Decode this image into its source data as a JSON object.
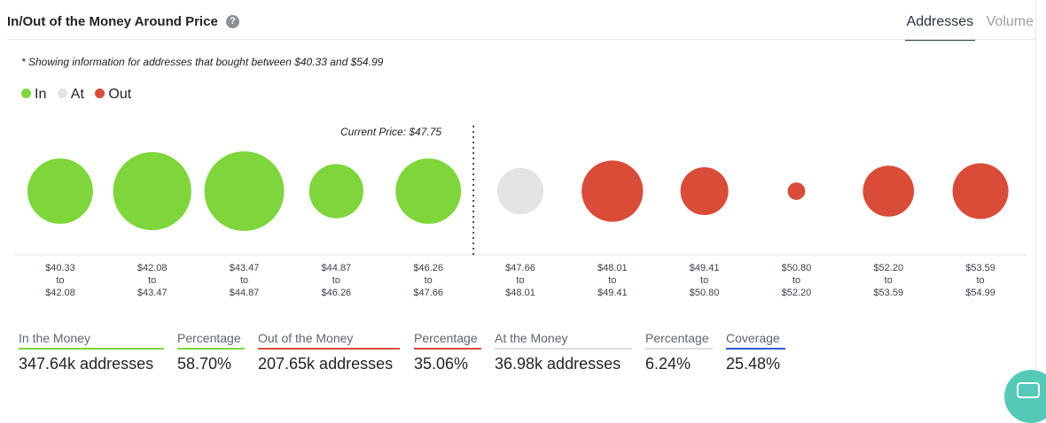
{
  "header": {
    "title": "In/Out of the Money Around Price",
    "help_icon": "?",
    "tabs": [
      {
        "label": "Addresses",
        "active": true
      },
      {
        "label": "Volume",
        "active": false
      }
    ]
  },
  "note": "* Showing information for addresses that bought between $40.33 and $54.99",
  "colors": {
    "in": "#7ed63b",
    "at": "#e3e3e3",
    "out": "#d84c38"
  },
  "chart_data": {
    "type": "bubble",
    "legend": [
      {
        "label": "In",
        "status": "in"
      },
      {
        "label": "At",
        "status": "at"
      },
      {
        "label": "Out",
        "status": "out"
      }
    ],
    "current_price_label": "Current Price: $47.75",
    "bins": [
      {
        "from": "$40.33",
        "to_word": "to",
        "to": "$42.08",
        "status": "in",
        "relative_size": 0.82
      },
      {
        "from": "$42.08",
        "to_word": "to",
        "to": "$43.47",
        "status": "in",
        "relative_size": 0.98
      },
      {
        "from": "$43.47",
        "to_word": "to",
        "to": "$44.87",
        "status": "in",
        "relative_size": 1.0
      },
      {
        "from": "$44.87",
        "to_word": "to",
        "to": "$46.26",
        "status": "in",
        "relative_size": 0.68
      },
      {
        "from": "$46.26",
        "to_word": "to",
        "to": "$47.66",
        "status": "in",
        "relative_size": 0.82
      },
      {
        "from": "$47.66",
        "to_word": "to",
        "to": "$48.01",
        "status": "at",
        "relative_size": 0.58
      },
      {
        "from": "$48.01",
        "to_word": "to",
        "to": "$49.41",
        "status": "out",
        "relative_size": 0.77
      },
      {
        "from": "$49.41",
        "to_word": "to",
        "to": "$50.80",
        "status": "out",
        "relative_size": 0.6
      },
      {
        "from": "$50.80",
        "to_word": "to",
        "to": "$52.20",
        "status": "out",
        "relative_size": 0.22
      },
      {
        "from": "$52.20",
        "to_word": "to",
        "to": "$53.59",
        "status": "out",
        "relative_size": 0.64
      },
      {
        "from": "$53.59",
        "to_word": "to",
        "to": "$54.99",
        "status": "out",
        "relative_size": 0.7
      }
    ]
  },
  "stats": {
    "in": {
      "label": "In the Money",
      "value": "347.64k addresses",
      "color": "#7ed63b"
    },
    "in_pct": {
      "label": "Percentage",
      "value": "58.70%",
      "color": "#7ed63b"
    },
    "out": {
      "label": "Out of the Money",
      "value": "207.65k addresses",
      "color": "#d84c38"
    },
    "out_pct": {
      "label": "Percentage",
      "value": "35.06%",
      "color": "#d84c38"
    },
    "at": {
      "label": "At the Money",
      "value": "36.98k addresses",
      "color": "#dcdcdc"
    },
    "at_pct": {
      "label": "Percentage",
      "value": "6.24%",
      "color": "#dcdcdc"
    },
    "coverage": {
      "label": "Coverage",
      "value": "25.48%",
      "color": "#2f5bd6"
    }
  }
}
